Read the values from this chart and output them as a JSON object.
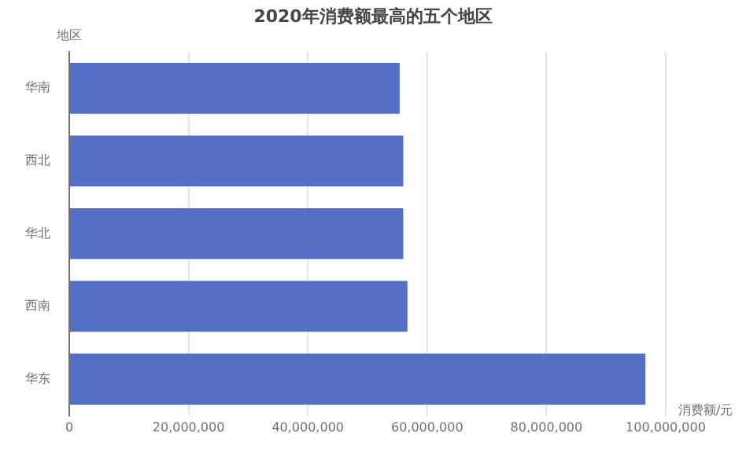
{
  "chart_data": {
    "type": "bar",
    "orientation": "horizontal",
    "title": "2020年消费额最高的五个地区",
    "xlabel": "消费额/元",
    "ylabel": "地区",
    "categories": [
      "华南",
      "西北",
      "华北",
      "西南",
      "华东"
    ],
    "series": [
      {
        "color": "#5470c6",
        "values": [
          55400000,
          56000000,
          56000000,
          56700000,
          96600000
        ]
      }
    ],
    "xlim": [
      0,
      100000000
    ],
    "xticks": [
      0,
      {
        "value": 20000000,
        "label": "20,000,000"
      },
      {
        "value": 40000000,
        "label": "40,000,000"
      },
      {
        "value": 60000000,
        "label": "60,000,000"
      },
      {
        "value": 80000000,
        "label": "80,000,000"
      },
      {
        "value": 100000000,
        "label": "100,000,000"
      }
    ],
    "grid": "x",
    "legend": false
  }
}
